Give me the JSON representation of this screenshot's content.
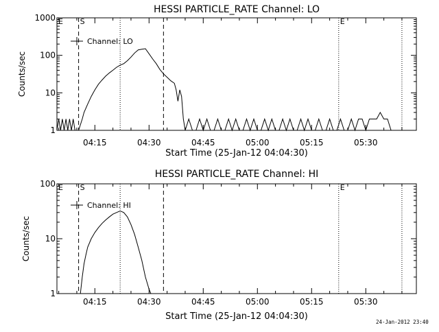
{
  "footer": {
    "timestamp": "24-Jan-2012 23:40"
  },
  "chart_data": [
    {
      "type": "line",
      "title": "HESSI PARTICLE_RATE Channel: LO",
      "xlabel": "Start Time (25-Jan-12 04:04:30)",
      "ylabel": "Counts/sec",
      "yscale": "log",
      "xlim": [
        "04:04:30",
        "05:44:00"
      ],
      "ylim": [
        1,
        1000
      ],
      "xticks": [
        "04:15",
        "04:30",
        "04:45",
        "05:00",
        "05:15",
        "05:30"
      ],
      "yticks": [
        "1",
        "10",
        "100",
        "1000"
      ],
      "legend": {
        "placement": "top-left",
        "entries": [
          "Channel: LO"
        ]
      },
      "markers": [
        {
          "label": "E",
          "time": "04:04:30",
          "style": "dotted"
        },
        {
          "label": "S",
          "time": "04:10:30",
          "style": "dashed"
        },
        {
          "label": "",
          "time": "04:22:00",
          "style": "dotted"
        },
        {
          "label": "",
          "time": "04:34:00",
          "style": "dashed"
        },
        {
          "label": "E",
          "time": "05:22:30",
          "style": "dotted"
        },
        {
          "label": "",
          "time": "05:40:00",
          "style": "dotted"
        }
      ],
      "series": [
        {
          "name": "Channel: LO",
          "x": [
            "04:04:30",
            "04:05:00",
            "04:05:30",
            "04:06:00",
            "04:06:30",
            "04:07:00",
            "04:07:30",
            "04:08:00",
            "04:08:30",
            "04:09:00",
            "04:09:30",
            "04:10:00",
            "04:10:30",
            "04:11:00",
            "04:11:30",
            "04:12:00",
            "04:13:00",
            "04:14:00",
            "04:15:00",
            "04:16:00",
            "04:17:00",
            "04:18:00",
            "04:19:00",
            "04:20:00",
            "04:21:00",
            "04:22:00",
            "04:23:00",
            "04:24:00",
            "04:25:00",
            "04:26:00",
            "04:27:00",
            "04:28:00",
            "04:29:00",
            "04:30:00",
            "04:31:00",
            "04:32:00",
            "04:33:00",
            "04:34:00",
            "04:35:00",
            "04:36:00",
            "04:37:00",
            "04:37:30",
            "04:38:00",
            "04:38:30",
            "04:39:00",
            "04:39:30",
            "04:40:00",
            "04:41:00",
            "04:42:00",
            "04:43:00",
            "04:44:00",
            "04:45:00",
            "04:46:00",
            "04:47:00",
            "04:48:00",
            "04:49:00",
            "04:50:00",
            "04:51:00",
            "04:52:00",
            "04:53:00",
            "04:54:00",
            "04:55:00",
            "04:56:00",
            "04:57:00",
            "04:58:00",
            "04:59:00",
            "05:00:00",
            "05:01:00",
            "05:02:00",
            "05:03:00",
            "05:04:00",
            "05:05:00",
            "05:06:00",
            "05:07:00",
            "05:08:00",
            "05:09:00",
            "05:10:00",
            "05:11:00",
            "05:12:00",
            "05:13:00",
            "05:14:00",
            "05:15:00",
            "05:16:00",
            "05:17:00",
            "05:18:00",
            "05:19:00",
            "05:20:00",
            "05:21:00",
            "05:22:00",
            "05:23:00",
            "05:24:00",
            "05:25:00",
            "05:26:00",
            "05:27:00",
            "05:28:00",
            "05:29:00",
            "05:30:00",
            "05:31:00",
            "05:32:00",
            "05:33:00",
            "05:34:00",
            "05:35:00",
            "05:36:00",
            "05:37:00",
            "05:38:00",
            "05:39:00",
            "05:40:00"
          ],
          "y": [
            1,
            2,
            1,
            2,
            1,
            2,
            1,
            2,
            1,
            2,
            1,
            1,
            1,
            1.4,
            2,
            3,
            5,
            8,
            12,
            17,
            22,
            28,
            34,
            40,
            48,
            55,
            60,
            72,
            90,
            115,
            140,
            145,
            150,
            110,
            80,
            60,
            42,
            32,
            26,
            21,
            18,
            12,
            6,
            12,
            8,
            2,
            1,
            2,
            1,
            1,
            2,
            1,
            2,
            1,
            1,
            2,
            1,
            1,
            2,
            1,
            2,
            1,
            1,
            2,
            1,
            2,
            1,
            1,
            2,
            1,
            2,
            1,
            1,
            2,
            1,
            2,
            1,
            1,
            2,
            1,
            2,
            1,
            1,
            2,
            1,
            1,
            2,
            1,
            1,
            2,
            1,
            1,
            2,
            1,
            2,
            2,
            1,
            2,
            2,
            2,
            3,
            2,
            2,
            1,
            1,
            1,
            1
          ]
        }
      ]
    },
    {
      "type": "line",
      "title": "HESSI PARTICLE_RATE Channel: HI",
      "xlabel": "Start Time (25-Jan-12 04:04:30)",
      "ylabel": "Counts/sec",
      "yscale": "log",
      "xlim": [
        "04:04:30",
        "05:44:00"
      ],
      "ylim": [
        1,
        100
      ],
      "xticks": [
        "04:15",
        "04:30",
        "04:45",
        "05:00",
        "05:15",
        "05:30"
      ],
      "yticks": [
        "1",
        "10",
        "100"
      ],
      "legend": {
        "placement": "top-left",
        "entries": [
          "Channel: HI"
        ]
      },
      "markers": [
        {
          "label": "E",
          "time": "04:04:30",
          "style": "dotted"
        },
        {
          "label": "S",
          "time": "04:10:30",
          "style": "dashed"
        },
        {
          "label": "",
          "time": "04:22:00",
          "style": "dotted"
        },
        {
          "label": "",
          "time": "04:34:00",
          "style": "dashed"
        },
        {
          "label": "E",
          "time": "05:22:30",
          "style": "dotted"
        },
        {
          "label": "",
          "time": "05:40:00",
          "style": "dotted"
        }
      ],
      "series": [
        {
          "name": "Channel: HI",
          "x": [
            "04:11:00",
            "04:11:30",
            "04:12:00",
            "04:12:30",
            "04:13:00",
            "04:14:00",
            "04:15:00",
            "04:16:00",
            "04:17:00",
            "04:18:00",
            "04:19:00",
            "04:20:00",
            "04:21:00",
            "04:22:00",
            "04:23:00",
            "04:24:00",
            "04:25:00",
            "04:26:00",
            "04:27:00",
            "04:28:00",
            "04:29:00",
            "04:30:00",
            "04:30:30"
          ],
          "y": [
            1,
            2,
            3.5,
            5,
            7,
            10,
            13,
            16,
            19,
            22,
            25,
            28,
            30,
            32,
            30,
            25,
            18,
            12,
            7,
            4,
            2,
            1.2,
            1
          ]
        }
      ]
    }
  ]
}
